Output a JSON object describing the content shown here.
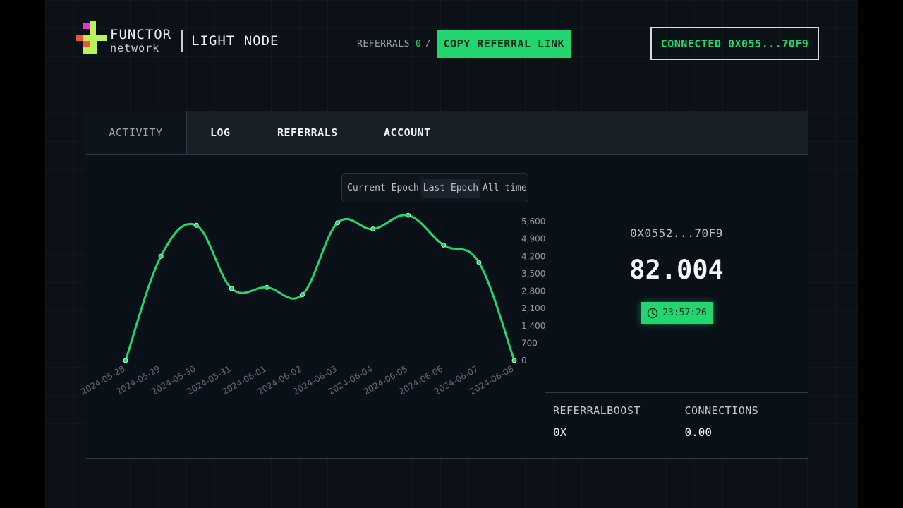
{
  "header": {
    "brand": "FUNCTOR",
    "brand_sub": "network",
    "product": "LIGHT NODE",
    "referrals_label": "REFERRALS",
    "referrals_count": "0",
    "referrals_sep": "/",
    "copy_button": "COPY REFERRAL LINK",
    "connected_button": "CONNECTED 0X055...70F9"
  },
  "tabs": [
    {
      "label": "ACTIVITY",
      "active": true
    },
    {
      "label": "LOG",
      "active": false
    },
    {
      "label": "REFERRALS",
      "active": false
    },
    {
      "label": "ACCOUNT",
      "active": false
    }
  ],
  "epoch_toggle": {
    "options": [
      "Current Epoch",
      "Last Epoch",
      "All time"
    ],
    "selected": "Last Epoch"
  },
  "chart_data": {
    "type": "line",
    "x": [
      "2024-05-28",
      "2024-05-29",
      "2024-05-30",
      "2024-05-31",
      "2024-06-01",
      "2024-06-02",
      "2024-06-03",
      "2024-06-04",
      "2024-06-05",
      "2024-06-06",
      "2024-06-07",
      "2024-06-08"
    ],
    "series": [
      {
        "values": [
          0,
          4200,
          5450,
          2900,
          2950,
          2650,
          5550,
          5300,
          5850,
          4650,
          3950,
          0
        ],
        "color": "#22d66f"
      }
    ],
    "yticks": [
      "0",
      "700",
      "1,400",
      "2,100",
      "2,800",
      "3,500",
      "4,200",
      "4,900",
      "5,600"
    ],
    "ylim": [
      0,
      5600
    ],
    "y_axis_side": "right",
    "grid": false,
    "legend": false
  },
  "stats": {
    "address": "0X0552...70F9",
    "points": "82.004",
    "timer": "23:57:26",
    "referral_boost_label": "REFERRALBOOST",
    "referral_boost_value": "0X",
    "connections_label": "CONNECTIONS",
    "connections_value": "0.00"
  },
  "colors": {
    "accent": "#22d66f",
    "background": "#0b1117",
    "border": "#2f3a44"
  }
}
